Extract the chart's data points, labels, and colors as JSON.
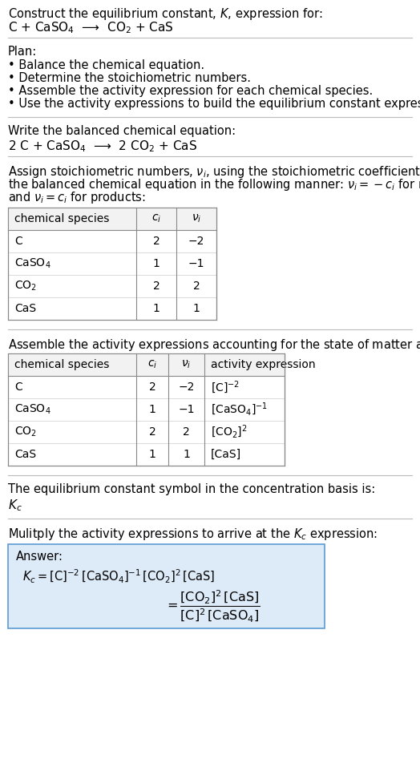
{
  "title_line1": "Construct the equilibrium constant, $K$, expression for:",
  "title_line2": "C + CaSO$_4$  ⟶  CO$_2$ + CaS",
  "plan_header": "Plan:",
  "plan_items": [
    "• Balance the chemical equation.",
    "• Determine the stoichiometric numbers.",
    "• Assemble the activity expression for each chemical species.",
    "• Use the activity expressions to build the equilibrium constant expression."
  ],
  "balanced_header": "Write the balanced chemical equation:",
  "balanced_eq": "2 C + CaSO$_4$  ⟶  2 CO$_2$ + CaS",
  "stoich_intro_lines": [
    "Assign stoichiometric numbers, $\\nu_i$, using the stoichiometric coefficients, $c_i$, from",
    "the balanced chemical equation in the following manner: $\\nu_i = -c_i$ for reactants",
    "and $\\nu_i = c_i$ for products:"
  ],
  "table1_headers": [
    "chemical species",
    "$c_i$",
    "$\\nu_i$"
  ],
  "table1_rows": [
    [
      "C",
      "2",
      "−2"
    ],
    [
      "CaSO$_4$",
      "1",
      "−1"
    ],
    [
      "CO$_2$",
      "2",
      "2"
    ],
    [
      "CaS",
      "1",
      "1"
    ]
  ],
  "assemble_intro": "Assemble the activity expressions accounting for the state of matter and $\\nu_i$:",
  "table2_headers": [
    "chemical species",
    "$c_i$",
    "$\\nu_i$",
    "activity expression"
  ],
  "table2_rows": [
    [
      "C",
      "2",
      "−2",
      "[C]$^{-2}$"
    ],
    [
      "CaSO$_4$",
      "1",
      "−1",
      "[CaSO$_4$]$^{-1}$"
    ],
    [
      "CO$_2$",
      "2",
      "2",
      "[CO$_2$]$^{2}$"
    ],
    [
      "CaS",
      "1",
      "1",
      "[CaS]"
    ]
  ],
  "kc_intro": "The equilibrium constant symbol in the concentration basis is:",
  "kc_symbol": "$K_c$",
  "multiply_intro": "Mulitply the activity expressions to arrive at the $K_c$ expression:",
  "answer_label": "Answer:",
  "answer_line1": "$K_c = [\\mathrm{C}]^{-2} [\\mathrm{CaSO_4}]^{-1} [\\mathrm{CO_2}]^{2} [\\mathrm{CaS}]$  $= \\dfrac{[\\mathrm{CO_2}]^{2} [\\mathrm{CaS}]}{[\\mathrm{C}]^{2} [\\mathrm{CaSO_4}]}$",
  "bg_color": "#ffffff",
  "answer_bg": "#ddeaf7",
  "answer_border": "#5b9bd5",
  "text_color": "#000000",
  "sep_color": "#bbbbbb"
}
